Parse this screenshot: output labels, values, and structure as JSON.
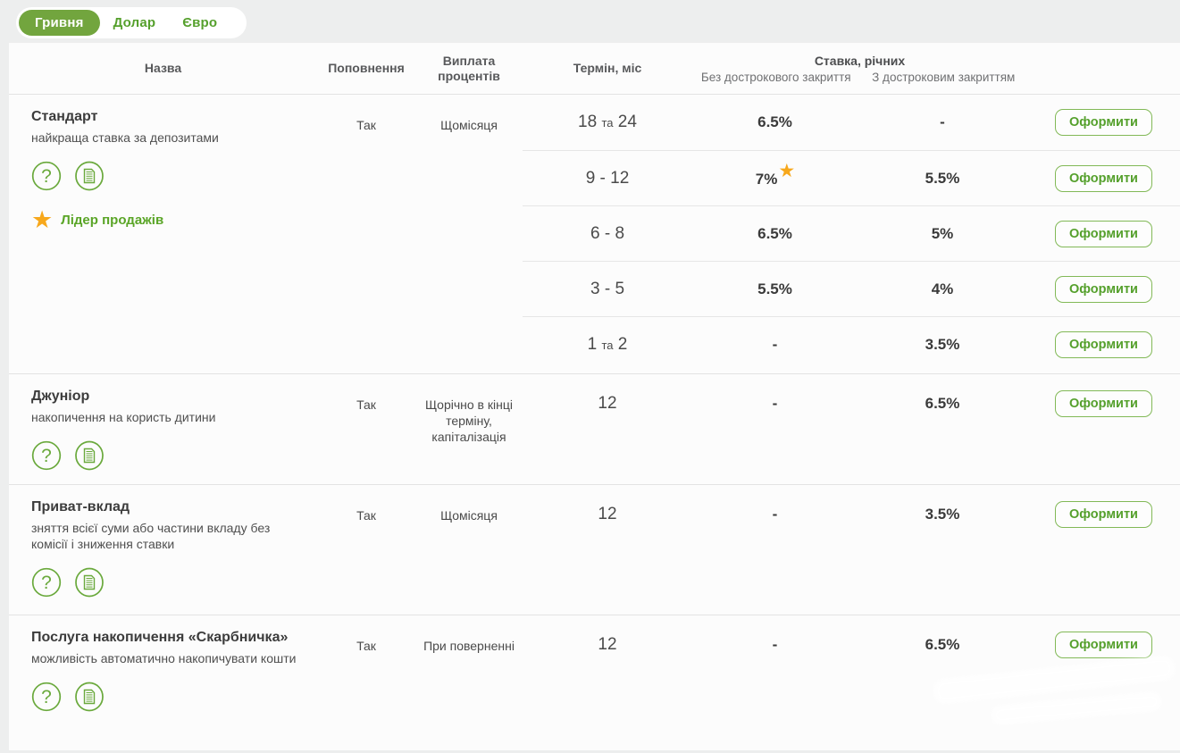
{
  "currency_tabs": [
    {
      "label": "Гривня",
      "active": true
    },
    {
      "label": "Долар",
      "active": false
    },
    {
      "label": "Євро",
      "active": false
    }
  ],
  "table_header": {
    "name": "Назва",
    "topup": "Поповнення",
    "payout": "Виплата процентів",
    "term": "Термін, міс",
    "rate_group": "Ставка, річних",
    "rate_no_early": "Без дострокового закриття",
    "rate_early": "З достроковим закриттям"
  },
  "apply_label": "Оформити",
  "icons": {
    "help": "question-icon",
    "docs": "document-icon",
    "star": "star-icon"
  },
  "colors": {
    "accent_green": "#55a02c",
    "tab_active_bg": "#72a53e",
    "star_orange": "#f7a81c"
  },
  "products": [
    {
      "name": "Стандарт",
      "description": "найкраща ставка за депозитами",
      "topup": "Так",
      "payout": "Щомісяця",
      "badge": "Лідер продажів",
      "rates": [
        {
          "term_parts": [
            "18",
            "та",
            "24"
          ],
          "no_early": "6.5%",
          "early": "-",
          "highlight": false
        },
        {
          "term_parts": [
            "9",
            "-",
            "12"
          ],
          "no_early": "7%",
          "early": "5.5%",
          "highlight": true
        },
        {
          "term_parts": [
            "6",
            "-",
            "8"
          ],
          "no_early": "6.5%",
          "early": "5%",
          "highlight": false
        },
        {
          "term_parts": [
            "3",
            "-",
            "5"
          ],
          "no_early": "5.5%",
          "early": "4%",
          "highlight": false
        },
        {
          "term_parts": [
            "1",
            "та",
            "2"
          ],
          "no_early": "-",
          "early": "3.5%",
          "highlight": false
        }
      ]
    },
    {
      "name": "Джуніор",
      "description": "накопичення на користь дитини",
      "topup": "Так",
      "payout": "Щорічно в кінці терміну, капіталізація",
      "badge": null,
      "rates": [
        {
          "term_parts": [
            "12"
          ],
          "no_early": "-",
          "early": "6.5%",
          "highlight": false
        }
      ]
    },
    {
      "name": "Приват-вклад",
      "description": "зняття всієї суми або частини вкладу без комісії і зниження ставки",
      "topup": "Так",
      "payout": "Щомісяця",
      "badge": null,
      "rates": [
        {
          "term_parts": [
            "12"
          ],
          "no_early": "-",
          "early": "3.5%",
          "highlight": false
        }
      ]
    },
    {
      "name": "Послуга накопичення «Скарбничка»",
      "description": "можливість автоматично накопичувати кошти",
      "topup": "Так",
      "payout": "При поверненні",
      "badge": null,
      "rates": [
        {
          "term_parts": [
            "12"
          ],
          "no_early": "-",
          "early": "6.5%",
          "highlight": false
        }
      ]
    }
  ]
}
